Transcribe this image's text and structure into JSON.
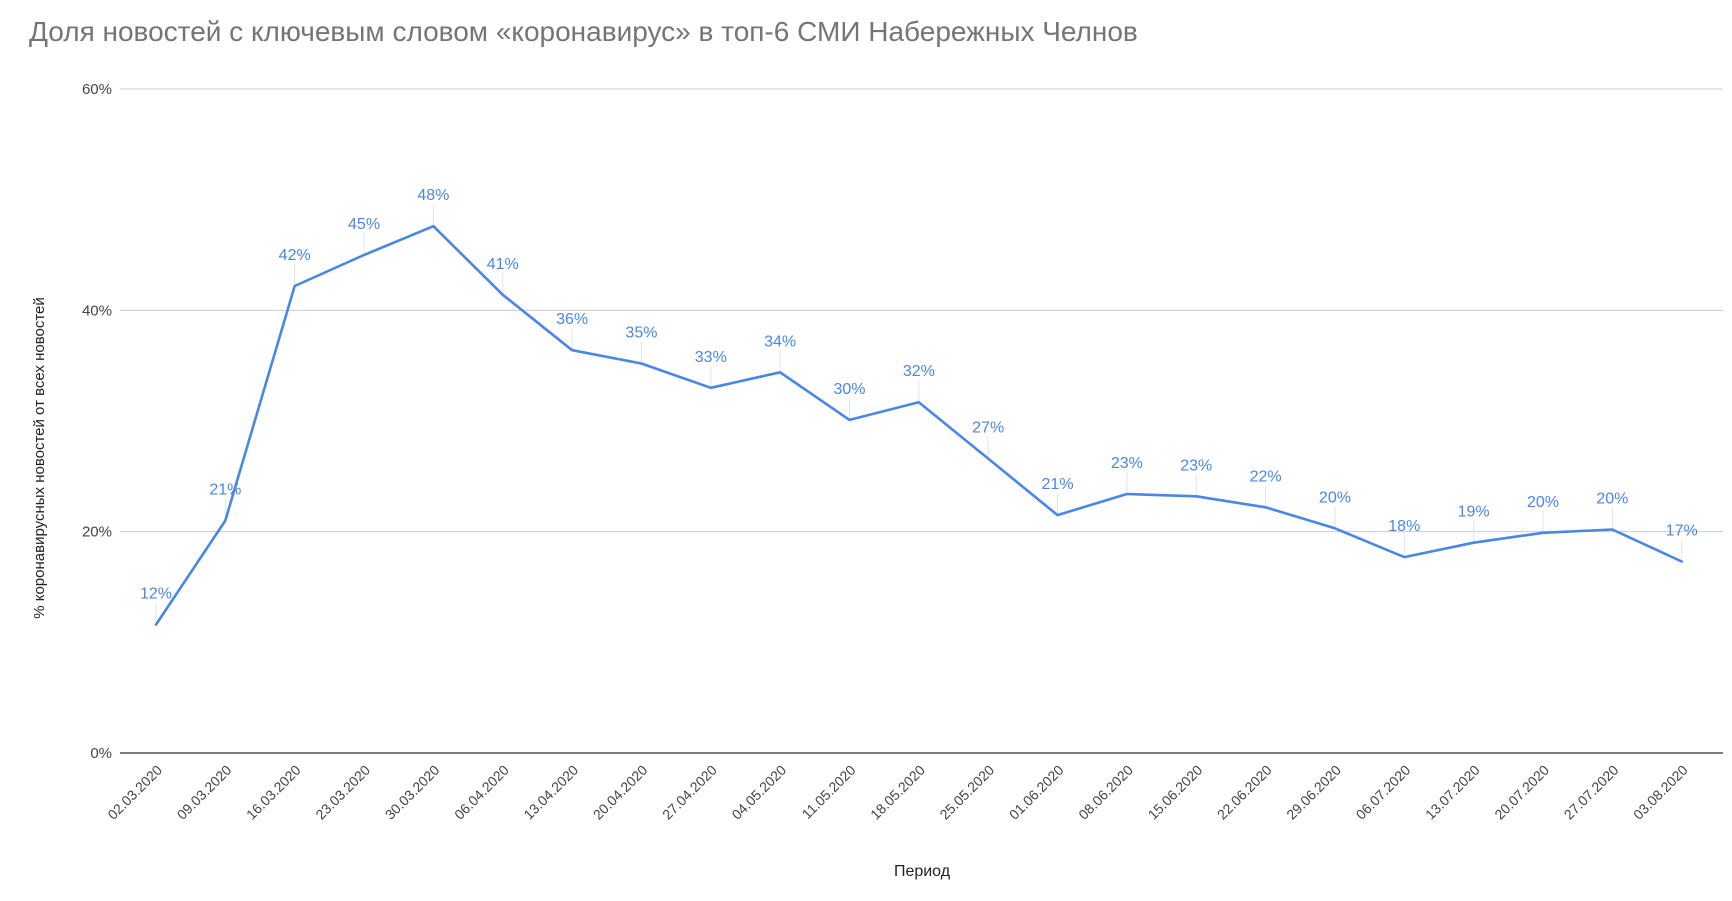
{
  "chart_data": {
    "type": "line",
    "title": "Доля новостей с ключевым словом «коронавирус» в топ-6 СМИ Набережных Челнов",
    "xlabel": "Период",
    "ylabel": "% коронавирусных новостей от всех новостей",
    "ylim": [
      0,
      60
    ],
    "yticks": [
      "0%",
      "20%",
      "40%",
      "60%"
    ],
    "grid": true,
    "legend": "none",
    "categories": [
      "02.03.2020",
      "09.03.2020",
      "16.03.2020",
      "23.03.2020",
      "30.03.2020",
      "06.04.2020",
      "13.04.2020",
      "20.04.2020",
      "27.04.2020",
      "04.05.2020",
      "11.05.2020",
      "18.05.2020",
      "25.05.2020",
      "01.06.2020",
      "08.06.2020",
      "15.06.2020",
      "22.06.2020",
      "29.06.2020",
      "06.07.2020",
      "13.07.2020",
      "20.07.2020",
      "27.07.2020",
      "03.08.2020"
    ],
    "series": [
      {
        "color": "#4a86e8",
        "values": [
          11.6,
          21.0,
          42.2,
          45.0,
          47.6,
          41.4,
          36.4,
          35.2,
          33.0,
          34.4,
          30.1,
          31.7,
          26.6,
          21.5,
          23.4,
          23.2,
          22.2,
          20.3,
          17.7,
          19.0,
          19.9,
          20.2,
          17.3
        ],
        "labels": [
          "12%",
          "21%",
          "42%",
          "45%",
          "48%",
          "41%",
          "36%",
          "35%",
          "33%",
          "34%",
          "30%",
          "32%",
          "27%",
          "21%",
          "23%",
          "23%",
          "22%",
          "20%",
          "18%",
          "19%",
          "20%",
          "20%",
          "17%"
        ]
      }
    ]
  }
}
